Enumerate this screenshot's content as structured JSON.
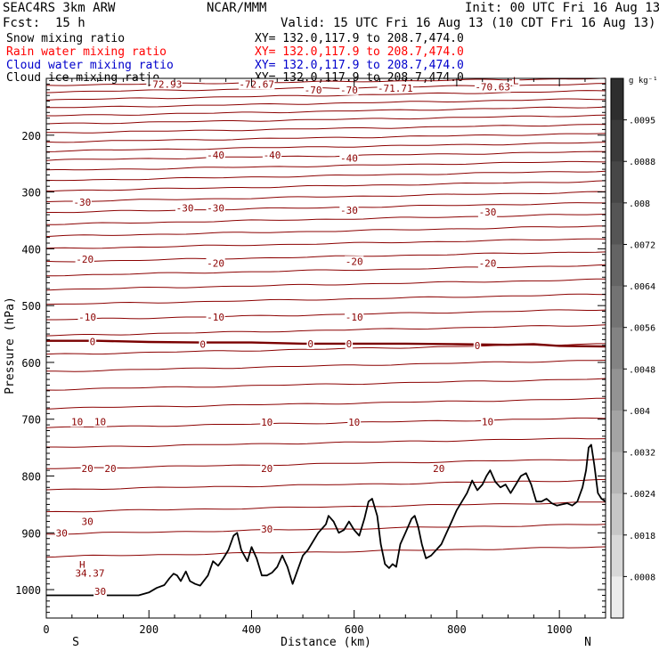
{
  "header": {
    "model": "SEAC4RS  3km ARW",
    "org": "NCAR/MMM",
    "init": "Init: 00 UTC Fri 16 Aug 13",
    "fcst_label": "Fcst:",
    "fcst_value": "15 h",
    "valid": "Valid: 15 UTC Fri 16 Aug 13 (10 CDT Fri 16 Aug 13)"
  },
  "legend": [
    {
      "name": "Snow mixing ratio",
      "xy": "XY= 132.0,117.9 to 208.7,474.0",
      "color": "#000000"
    },
    {
      "name": "Rain water mixing ratio",
      "xy": "XY= 132.0,117.9 to 208.7,474.0",
      "color": "#ff0000"
    },
    {
      "name": "Cloud water mixing ratio",
      "xy": "XY= 132.0,117.9 to 208.7,474.0",
      "color": "#0000cc"
    },
    {
      "name": "Cloud ice mixing ratio",
      "xy": "XY= 132.0,117.9 to 208.7,474.0",
      "color": "#000000"
    }
  ],
  "chart_data": {
    "type": "line",
    "xlabel": "Distance (km)",
    "ylabel": "Pressure (hPa)",
    "xlim": [
      0,
      1090
    ],
    "ylim": [
      1050,
      100
    ],
    "x_ticks": [
      0,
      200,
      400,
      600,
      800,
      1000
    ],
    "y_ticks": [
      200,
      300,
      400,
      500,
      600,
      700,
      800,
      900,
      1000
    ],
    "x_end_labels": {
      "left": "S",
      "right": "N"
    },
    "contour_color": "#8b0000",
    "zero_isotherm_color": "#7a0000",
    "isotherms": [
      {
        "p0": 112,
        "p1": 100
      },
      {
        "p0": 124,
        "p1": 110
      },
      {
        "p0": 138,
        "p1": 122
      },
      {
        "p0": 152,
        "p1": 136
      },
      {
        "p0": 166,
        "p1": 150
      },
      {
        "p0": 180,
        "p1": 165
      },
      {
        "p0": 196,
        "p1": 181
      },
      {
        "p0": 212,
        "p1": 197
      },
      {
        "p0": 228,
        "p1": 213
      },
      {
        "p0": 244,
        "p1": 229
      },
      {
        "p0": 262,
        "p1": 246
      },
      {
        "p0": 280,
        "p1": 263
      },
      {
        "p0": 298,
        "p1": 281
      },
      {
        "p0": 317,
        "p1": 300
      },
      {
        "p0": 336,
        "p1": 319
      },
      {
        "p0": 357,
        "p1": 339
      },
      {
        "p0": 378,
        "p1": 360
      },
      {
        "p0": 400,
        "p1": 382
      },
      {
        "p0": 423,
        "p1": 405
      },
      {
        "p0": 447,
        "p1": 429
      },
      {
        "p0": 472,
        "p1": 454
      },
      {
        "p0": 498,
        "p1": 480
      },
      {
        "p0": 525,
        "p1": 507
      },
      {
        "p0": 553,
        "p1": 534
      },
      {
        "p0": 586,
        "p1": 567
      },
      {
        "p0": 616,
        "p1": 596
      },
      {
        "p0": 648,
        "p1": 629
      },
      {
        "p0": 681,
        "p1": 664
      },
      {
        "p0": 715,
        "p1": 698
      },
      {
        "p0": 750,
        "p1": 733
      },
      {
        "p0": 787,
        "p1": 770
      },
      {
        "p0": 824,
        "p1": 807
      },
      {
        "p0": 863,
        "p1": 846
      },
      {
        "p0": 902,
        "p1": 885
      },
      {
        "p0": 942,
        "p1": 925
      }
    ],
    "zero_isotherm": [
      {
        "x": 0,
        "p": 562
      },
      {
        "x": 100,
        "p": 562
      },
      {
        "x": 200,
        "p": 564
      },
      {
        "x": 300,
        "p": 565
      },
      {
        "x": 400,
        "p": 565
      },
      {
        "x": 500,
        "p": 567
      },
      {
        "x": 600,
        "p": 567
      },
      {
        "x": 700,
        "p": 567
      },
      {
        "x": 800,
        "p": 568
      },
      {
        "x": 900,
        "p": 569
      },
      {
        "x": 950,
        "p": 568
      },
      {
        "x": 1000,
        "p": 571
      },
      {
        "x": 1090,
        "p": 572
      }
    ],
    "contour_labels": [
      {
        "text": "-72.93",
        "x": 230,
        "p": 110
      },
      {
        "text": "-72.67",
        "x": 410,
        "p": 110
      },
      {
        "text": "-70",
        "x": 520,
        "p": 120
      },
      {
        "text": "-70",
        "x": 590,
        "p": 120
      },
      {
        "text": "-71.71",
        "x": 680,
        "p": 117
      },
      {
        "text": "-70.63",
        "x": 870,
        "p": 115
      },
      {
        "text": "L",
        "x": 915,
        "p": 104
      },
      {
        "text": "-40",
        "x": 330,
        "p": 235
      },
      {
        "text": "-40",
        "x": 440,
        "p": 235
      },
      {
        "text": "-40",
        "x": 590,
        "p": 240
      },
      {
        "text": "-30",
        "x": 70,
        "p": 318
      },
      {
        "text": "-30",
        "x": 270,
        "p": 328
      },
      {
        "text": "-30",
        "x": 330,
        "p": 328
      },
      {
        "text": "-30",
        "x": 590,
        "p": 332
      },
      {
        "text": "-30",
        "x": 860,
        "p": 335
      },
      {
        "text": "-20",
        "x": 75,
        "p": 418
      },
      {
        "text": "-20",
        "x": 330,
        "p": 425
      },
      {
        "text": "-20",
        "x": 600,
        "p": 422
      },
      {
        "text": "-20",
        "x": 860,
        "p": 425
      },
      {
        "text": "-10",
        "x": 80,
        "p": 520
      },
      {
        "text": "-10",
        "x": 330,
        "p": 520
      },
      {
        "text": "-10",
        "x": 600,
        "p": 520
      },
      {
        "text": "0",
        "x": 90,
        "p": 563
      },
      {
        "text": "0",
        "x": 305,
        "p": 568
      },
      {
        "text": "0",
        "x": 515,
        "p": 567
      },
      {
        "text": "0",
        "x": 590,
        "p": 567
      },
      {
        "text": "0",
        "x": 840,
        "p": 570
      },
      {
        "text": "10",
        "x": 60,
        "p": 704
      },
      {
        "text": "10",
        "x": 105,
        "p": 704
      },
      {
        "text": "10",
        "x": 430,
        "p": 705
      },
      {
        "text": "10",
        "x": 600,
        "p": 705
      },
      {
        "text": "10",
        "x": 860,
        "p": 704
      },
      {
        "text": "20",
        "x": 80,
        "p": 787
      },
      {
        "text": "20",
        "x": 125,
        "p": 787
      },
      {
        "text": "20",
        "x": 430,
        "p": 787
      },
      {
        "text": "20",
        "x": 765,
        "p": 787
      },
      {
        "text": "30",
        "x": 30,
        "p": 900
      },
      {
        "text": "30",
        "x": 80,
        "p": 880
      },
      {
        "text": "30",
        "x": 430,
        "p": 893
      },
      {
        "text": "30",
        "x": 105,
        "p": 1003
      },
      {
        "text": "H",
        "x": 70,
        "p": 956
      },
      {
        "text": "34.37",
        "x": 85,
        "p": 971
      }
    ],
    "terrain": [
      {
        "x": 0,
        "p": 1010
      },
      {
        "x": 180,
        "p": 1010
      },
      {
        "x": 200,
        "p": 1005
      },
      {
        "x": 215,
        "p": 997
      },
      {
        "x": 230,
        "p": 992
      },
      {
        "x": 240,
        "p": 980
      },
      {
        "x": 248,
        "p": 972
      },
      {
        "x": 255,
        "p": 975
      },
      {
        "x": 262,
        "p": 985
      },
      {
        "x": 272,
        "p": 968
      },
      {
        "x": 280,
        "p": 985
      },
      {
        "x": 290,
        "p": 990
      },
      {
        "x": 300,
        "p": 993
      },
      {
        "x": 315,
        "p": 975
      },
      {
        "x": 325,
        "p": 950
      },
      {
        "x": 335,
        "p": 958
      },
      {
        "x": 345,
        "p": 945
      },
      {
        "x": 355,
        "p": 930
      },
      {
        "x": 365,
        "p": 905
      },
      {
        "x": 372,
        "p": 900
      },
      {
        "x": 380,
        "p": 930
      },
      {
        "x": 392,
        "p": 950
      },
      {
        "x": 400,
        "p": 925
      },
      {
        "x": 410,
        "p": 945
      },
      {
        "x": 420,
        "p": 975
      },
      {
        "x": 430,
        "p": 975
      },
      {
        "x": 440,
        "p": 970
      },
      {
        "x": 450,
        "p": 960
      },
      {
        "x": 460,
        "p": 940
      },
      {
        "x": 470,
        "p": 960
      },
      {
        "x": 480,
        "p": 990
      },
      {
        "x": 490,
        "p": 965
      },
      {
        "x": 500,
        "p": 940
      },
      {
        "x": 510,
        "p": 930
      },
      {
        "x": 520,
        "p": 915
      },
      {
        "x": 530,
        "p": 900
      },
      {
        "x": 545,
        "p": 885
      },
      {
        "x": 550,
        "p": 870
      },
      {
        "x": 560,
        "p": 880
      },
      {
        "x": 570,
        "p": 900
      },
      {
        "x": 580,
        "p": 895
      },
      {
        "x": 590,
        "p": 880
      },
      {
        "x": 600,
        "p": 895
      },
      {
        "x": 610,
        "p": 905
      },
      {
        "x": 620,
        "p": 875
      },
      {
        "x": 628,
        "p": 845
      },
      {
        "x": 635,
        "p": 840
      },
      {
        "x": 645,
        "p": 870
      },
      {
        "x": 652,
        "p": 920
      },
      {
        "x": 660,
        "p": 955
      },
      {
        "x": 668,
        "p": 962
      },
      {
        "x": 675,
        "p": 955
      },
      {
        "x": 682,
        "p": 960
      },
      {
        "x": 690,
        "p": 920
      },
      {
        "x": 700,
        "p": 900
      },
      {
        "x": 712,
        "p": 875
      },
      {
        "x": 718,
        "p": 870
      },
      {
        "x": 725,
        "p": 890
      },
      {
        "x": 732,
        "p": 920
      },
      {
        "x": 740,
        "p": 945
      },
      {
        "x": 750,
        "p": 940
      },
      {
        "x": 760,
        "p": 930
      },
      {
        "x": 770,
        "p": 920
      },
      {
        "x": 780,
        "p": 900
      },
      {
        "x": 790,
        "p": 880
      },
      {
        "x": 800,
        "p": 860
      },
      {
        "x": 810,
        "p": 845
      },
      {
        "x": 820,
        "p": 830
      },
      {
        "x": 830,
        "p": 808
      },
      {
        "x": 840,
        "p": 825
      },
      {
        "x": 850,
        "p": 815
      },
      {
        "x": 858,
        "p": 800
      },
      {
        "x": 865,
        "p": 790
      },
      {
        "x": 875,
        "p": 810
      },
      {
        "x": 885,
        "p": 820
      },
      {
        "x": 895,
        "p": 815
      },
      {
        "x": 905,
        "p": 830
      },
      {
        "x": 915,
        "p": 815
      },
      {
        "x": 925,
        "p": 800
      },
      {
        "x": 935,
        "p": 795
      },
      {
        "x": 945,
        "p": 815
      },
      {
        "x": 955,
        "p": 845
      },
      {
        "x": 965,
        "p": 845
      },
      {
        "x": 975,
        "p": 840
      },
      {
        "x": 985,
        "p": 848
      },
      {
        "x": 995,
        "p": 852
      },
      {
        "x": 1005,
        "p": 850
      },
      {
        "x": 1015,
        "p": 848
      },
      {
        "x": 1025,
        "p": 852
      },
      {
        "x": 1035,
        "p": 845
      },
      {
        "x": 1045,
        "p": 820
      },
      {
        "x": 1052,
        "p": 790
      },
      {
        "x": 1057,
        "p": 750
      },
      {
        "x": 1062,
        "p": 745
      },
      {
        "x": 1068,
        "p": 780
      },
      {
        "x": 1075,
        "p": 830
      },
      {
        "x": 1082,
        "p": 840
      },
      {
        "x": 1090,
        "p": 845
      }
    ],
    "colorbar": {
      "unit": "g kg⁻¹",
      "labels": [
        ".0095",
        ".0088",
        ".008",
        ".0072",
        ".0064",
        ".0056",
        ".0048",
        ".004",
        ".0032",
        ".0024",
        ".0018",
        ".0008"
      ],
      "colors": [
        "#2e2e2e",
        "#3a3a3a",
        "#474747",
        "#555555",
        "#646464",
        "#737373",
        "#838383",
        "#939393",
        "#a4a4a4",
        "#b5b5b5",
        "#c6c6c6",
        "#d8d8d8",
        "#ececec"
      ]
    }
  }
}
